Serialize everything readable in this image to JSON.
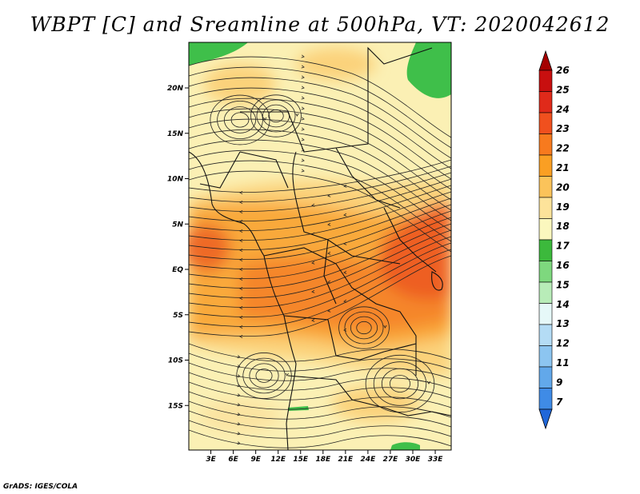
{
  "title": "WBPT [C] and Sreamline at 500hPa, VT: 2020042612",
  "footer": "GrADS: IGES/COLA",
  "map": {
    "lat_labels": [
      "20N",
      "15N",
      "10N",
      "5N",
      "EQ",
      "5S",
      "10S",
      "15S"
    ],
    "lat_values": [
      20,
      15,
      10,
      5,
      0,
      -5,
      -10,
      -15
    ],
    "lon_labels": [
      "3E",
      "6E",
      "9E",
      "12E",
      "15E",
      "18E",
      "21E",
      "24E",
      "27E",
      "30E",
      "33E"
    ],
    "lon_values": [
      3,
      6,
      9,
      12,
      15,
      18,
      21,
      24,
      27,
      30,
      33
    ]
  },
  "colorbar": {
    "labels": [
      "26",
      "25",
      "24",
      "23",
      "22",
      "21",
      "20",
      "19",
      "18",
      "17",
      "16",
      "15",
      "14",
      "13",
      "12",
      "11",
      "9",
      "7"
    ],
    "colors": [
      "#a50000",
      "#c80f0f",
      "#e02a1a",
      "#f0501e",
      "#f77a1e",
      "#fa9f23",
      "#fbc35a",
      "#fde39a",
      "#fbf7be",
      "#3cb93c",
      "#7ed87e",
      "#b8ecb8",
      "#e6f8f8",
      "#b4dcf5",
      "#8cc5f0",
      "#62a8ea",
      "#3f8be6",
      "#2067d9"
    ]
  },
  "palette": {
    "cream": "#fbf0b4",
    "light_orange": "#fbd27a",
    "orange": "#f9a93a",
    "dark_orange": "#f5862a",
    "red_orange": "#ee5e22",
    "green": "#3fbf4a"
  }
}
